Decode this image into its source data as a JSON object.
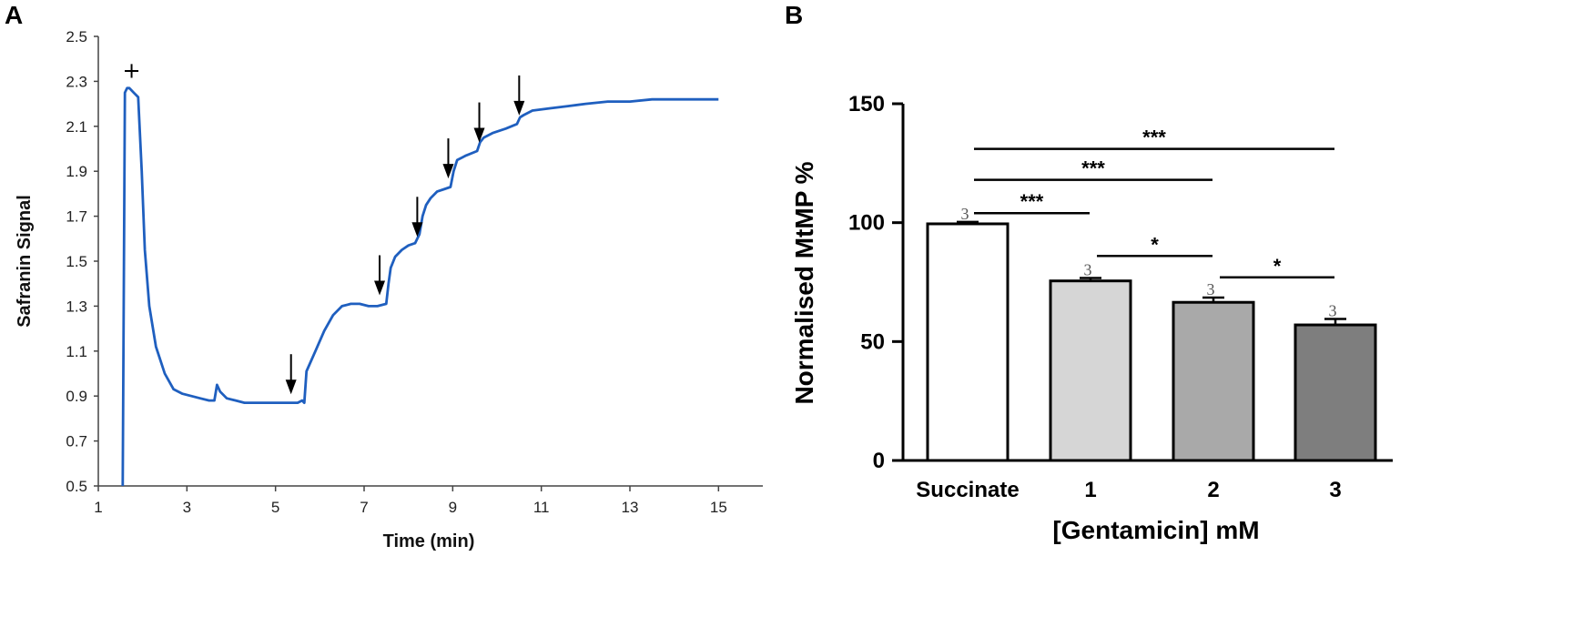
{
  "panels": {
    "a": "A",
    "b": "B"
  },
  "chart_data": [
    {
      "type": "line",
      "panel": "A",
      "title": "",
      "xlabel": "Time (min)",
      "ylabel": "Safranin Signal",
      "xlim": [
        1,
        16
      ],
      "ylim": [
        0.5,
        2.5
      ],
      "xticks": [
        1,
        3,
        5,
        7,
        9,
        11,
        13,
        15
      ],
      "yticks": [
        0.5,
        0.7,
        0.9,
        1.1,
        1.3,
        1.5,
        1.7,
        1.9,
        2.1,
        2.3,
        2.5
      ],
      "ytick_labels": [
        "0.5",
        "0.7",
        "0.9",
        "1.1",
        "1.3",
        "1.5",
        "1.7",
        "1.9",
        "2.1",
        "2.3",
        "2.5"
      ],
      "line_color": "#1f5fbf",
      "series": [
        {
          "name": "Safranin signal",
          "x": [
            1.55,
            1.6,
            1.65,
            1.7,
            1.8,
            1.9,
            1.98,
            2.05,
            2.15,
            2.3,
            2.5,
            2.7,
            2.9,
            3.1,
            3.3,
            3.5,
            3.62,
            3.68,
            3.75,
            3.9,
            4.1,
            4.3,
            4.6,
            5.0,
            5.3,
            5.5,
            5.6,
            5.65,
            5.7,
            5.9,
            6.1,
            6.3,
            6.5,
            6.7,
            6.9,
            7.1,
            7.3,
            7.5,
            7.55,
            7.6,
            7.7,
            7.85,
            8.0,
            8.15,
            8.25,
            8.32,
            8.4,
            8.5,
            8.65,
            8.8,
            8.95,
            9.02,
            9.1,
            9.3,
            9.55,
            9.62,
            9.7,
            9.9,
            10.2,
            10.45,
            10.52,
            10.6,
            10.8,
            11.2,
            11.6,
            12.0,
            12.5,
            13.0,
            13.5,
            14.0,
            14.5,
            15.0
          ],
          "y": [
            0.5,
            2.25,
            2.27,
            2.27,
            2.25,
            2.23,
            1.9,
            1.55,
            1.3,
            1.12,
            1.0,
            0.93,
            0.91,
            0.9,
            0.89,
            0.88,
            0.88,
            0.95,
            0.92,
            0.89,
            0.88,
            0.87,
            0.87,
            0.87,
            0.87,
            0.87,
            0.88,
            0.87,
            1.01,
            1.1,
            1.19,
            1.26,
            1.3,
            1.31,
            1.31,
            1.3,
            1.3,
            1.31,
            1.4,
            1.47,
            1.52,
            1.55,
            1.57,
            1.58,
            1.62,
            1.7,
            1.75,
            1.78,
            1.81,
            1.82,
            1.83,
            1.9,
            1.95,
            1.97,
            1.99,
            2.03,
            2.05,
            2.07,
            2.09,
            2.11,
            2.14,
            2.15,
            2.17,
            2.18,
            2.19,
            2.2,
            2.21,
            2.21,
            2.22,
            2.22,
            2.22,
            2.22
          ]
        }
      ],
      "annotations": {
        "plus_marker": {
          "symbol": "+",
          "x": 1.75,
          "y": 2.3
        },
        "arrows": [
          {
            "x": 5.35,
            "y": 0.9
          },
          {
            "x": 7.35,
            "y": 1.34
          },
          {
            "x": 8.2,
            "y": 1.6
          },
          {
            "x": 8.9,
            "y": 1.86
          },
          {
            "x": 9.6,
            "y": 2.02
          },
          {
            "x": 10.5,
            "y": 2.14
          }
        ]
      }
    },
    {
      "type": "bar",
      "panel": "B",
      "title": "",
      "xlabel": "[Gentamicin] mM",
      "ylabel": "Normalised MtMP %",
      "ylim": [
        0,
        150
      ],
      "yticks": [
        0,
        50,
        100,
        150
      ],
      "ytick_labels": [
        "0",
        "50",
        "100",
        "150"
      ],
      "categories": [
        "Succinate",
        "1",
        "2",
        "3"
      ],
      "values": [
        99.5,
        75.5,
        66.5,
        57
      ],
      "errors": [
        0.8,
        1.2,
        2.0,
        2.5
      ],
      "n_labels": [
        "3",
        "3",
        "3",
        "3"
      ],
      "bar_colors": [
        "#ffffff",
        "#d6d6d6",
        "#a9a9a9",
        "#7e7e7e"
      ],
      "significance": [
        {
          "from": 0,
          "to": 3,
          "label": "***",
          "y": 131
        },
        {
          "from": 0,
          "to": 2,
          "label": "***",
          "y": 118
        },
        {
          "from": 0,
          "to": 1,
          "label": "***",
          "y": 104
        },
        {
          "from": 1,
          "to": 2,
          "label": "*",
          "y": 86
        },
        {
          "from": 2,
          "to": 3,
          "label": "*",
          "y": 77
        }
      ]
    }
  ]
}
